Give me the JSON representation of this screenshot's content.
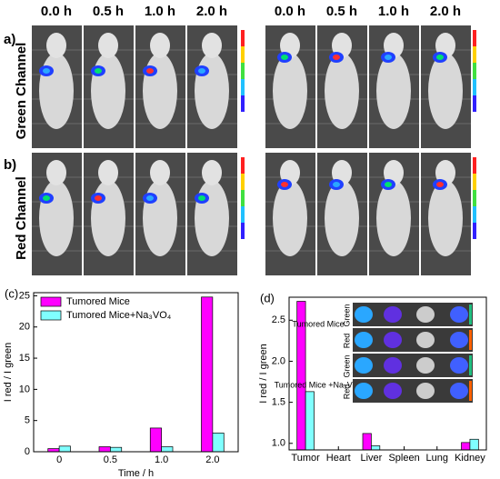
{
  "figure": {
    "panel_a": "a)",
    "panel_b": "b)",
    "times": [
      "0.0 h",
      "0.5 h",
      "1.0 h",
      "2.0 h",
      "0.0 h",
      "0.5 h",
      "1.0 h",
      "2.0 h"
    ],
    "row_labels": [
      "Green Channel",
      "Red Channel"
    ],
    "inset": {
      "groups": [
        "Tumored Mice",
        "Tumored Mice +Na₃VO₄"
      ],
      "channels": [
        "Green",
        "Red",
        "Green",
        "Red"
      ]
    }
  },
  "chart_data": [
    {
      "type": "bar",
      "panel": "(c)",
      "xlabel": "Time / h",
      "ylabel": "I red / I green",
      "categories": [
        "0",
        "0.5",
        "1.0",
        "2.0"
      ],
      "series": [
        {
          "name": "Tumored Mice",
          "color": "#ff00ff",
          "values": [
            0.5,
            0.8,
            3.8,
            24.8
          ]
        },
        {
          "name": "Tumored Mice+Na₃VO₄",
          "color": "#80ffff",
          "values": [
            0.9,
            0.7,
            0.8,
            3.0
          ]
        }
      ],
      "ylim": [
        0,
        25.5
      ],
      "yticks": [
        0,
        5,
        10,
        15,
        20,
        25
      ],
      "legend": "upper left"
    },
    {
      "type": "bar",
      "panel": "(d)",
      "ylabel": "I red / I green",
      "categories": [
        "Tumor",
        "Heart",
        "Liver",
        "Spleen",
        "Lung",
        "Kidney"
      ],
      "series": [
        {
          "name": null,
          "color": "#ff00ff",
          "values": [
            2.73,
            null,
            1.12,
            null,
            null,
            1.01
          ]
        },
        {
          "name": null,
          "color": "#80ffff",
          "values": [
            1.63,
            null,
            0.97,
            null,
            null,
            1.05
          ]
        }
      ],
      "ylim": [
        0.92,
        2.78
      ],
      "yticks": [
        {
          "value": 1,
          "label": "1.0"
        },
        {
          "value": 1.5,
          "label": "1.5"
        },
        {
          "value": 2,
          "label": "2.0"
        },
        {
          "value": 2.5,
          "label": "2.5"
        }
      ]
    }
  ]
}
